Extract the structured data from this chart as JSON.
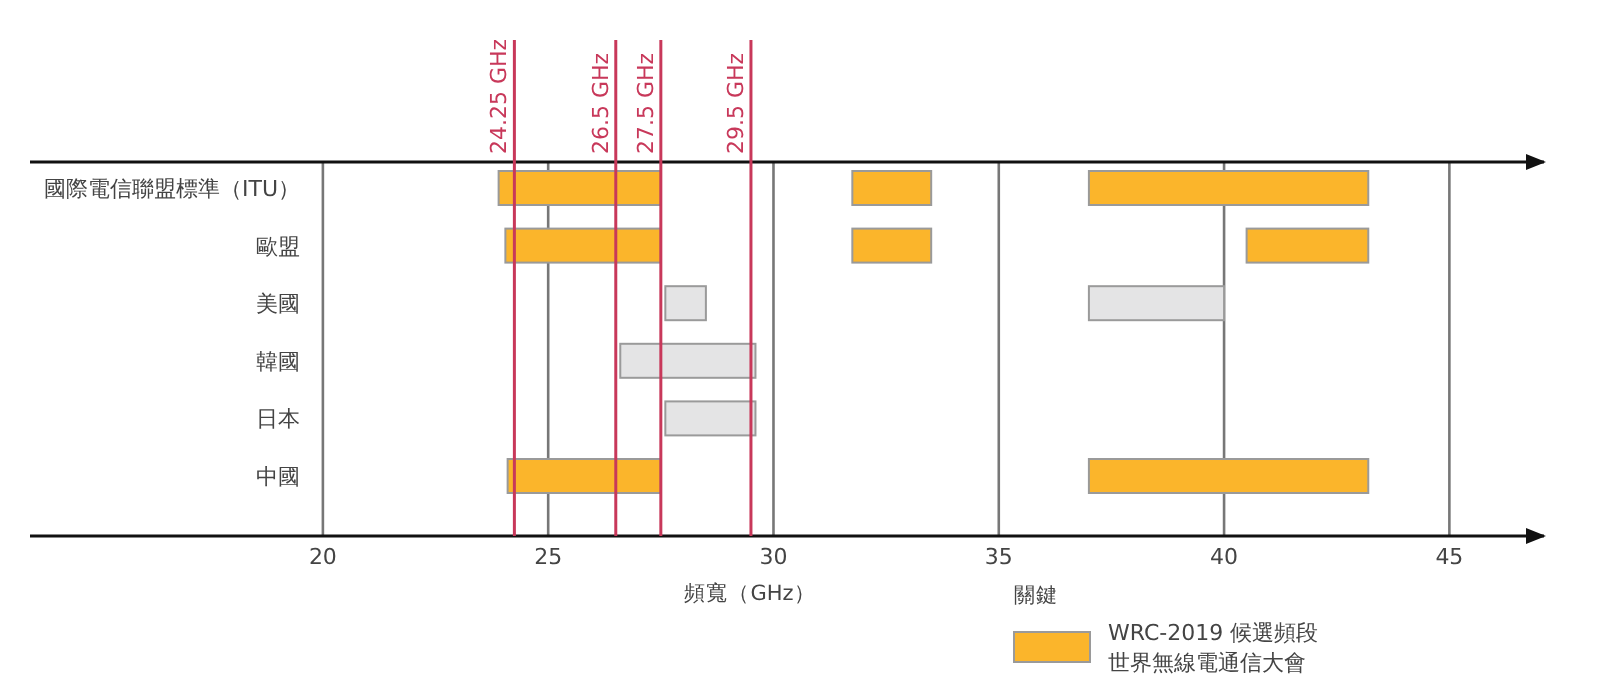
{
  "chart_data": {
    "type": "bar",
    "orientation": "horizontal",
    "categories": [
      "國際電信聯盟標準（ITU）",
      "歐盟",
      "美國",
      "韓國",
      "日本",
      "中國"
    ],
    "series": [
      {
        "name": "WRC-2019 候選頻段世界無線電通信大會",
        "color": "#fbb52b",
        "base": [
          23.9,
          24.05,
          null,
          null,
          null,
          24.1
        ],
        "values": [
          3.6,
          3.45,
          null,
          null,
          null,
          3.4
        ]
      },
      {
        "color": "#fbb52b",
        "base": [
          31.75,
          31.75,
          null,
          null,
          null,
          null
        ],
        "values": [
          1.75,
          1.75,
          null,
          null,
          null,
          null
        ]
      },
      {
        "color": "#fbb52b",
        "base": [
          37.0,
          40.5,
          null,
          null,
          null,
          37.0
        ],
        "values": [
          6.2,
          2.7,
          null,
          null,
          null,
          6.2
        ]
      },
      {
        "color": "#e4e4e5",
        "base": [
          null,
          null,
          27.6,
          26.6,
          27.6,
          null
        ],
        "values": [
          null,
          null,
          0.9,
          3.0,
          2.0,
          null
        ]
      },
      {
        "color": "#e4e4e5",
        "base": [
          null,
          null,
          37.0,
          null,
          null,
          null
        ],
        "values": [
          null,
          null,
          3.0,
          null,
          null,
          null
        ]
      }
    ],
    "xlim": [
      13.5,
      47.1
    ],
    "xticks": [
      20,
      25,
      30,
      35,
      40,
      45
    ],
    "grid": "x",
    "xlabel": "頻寬（GHz）",
    "legend_title": "關鍵",
    "legend": "bottom",
    "ref_lines": [
      {
        "axis": "x",
        "value": 24.25,
        "label": "24.25 GHz",
        "color": "#c8385a"
      },
      {
        "axis": "x",
        "value": 26.5,
        "label": "26.5 GHz",
        "color": "#c8385a"
      },
      {
        "axis": "x",
        "value": 27.5,
        "label": "27.5 GHz",
        "color": "#c8385a"
      },
      {
        "axis": "x",
        "value": 29.5,
        "label": "29.5 GHz",
        "color": "#c8385a"
      }
    ]
  }
}
